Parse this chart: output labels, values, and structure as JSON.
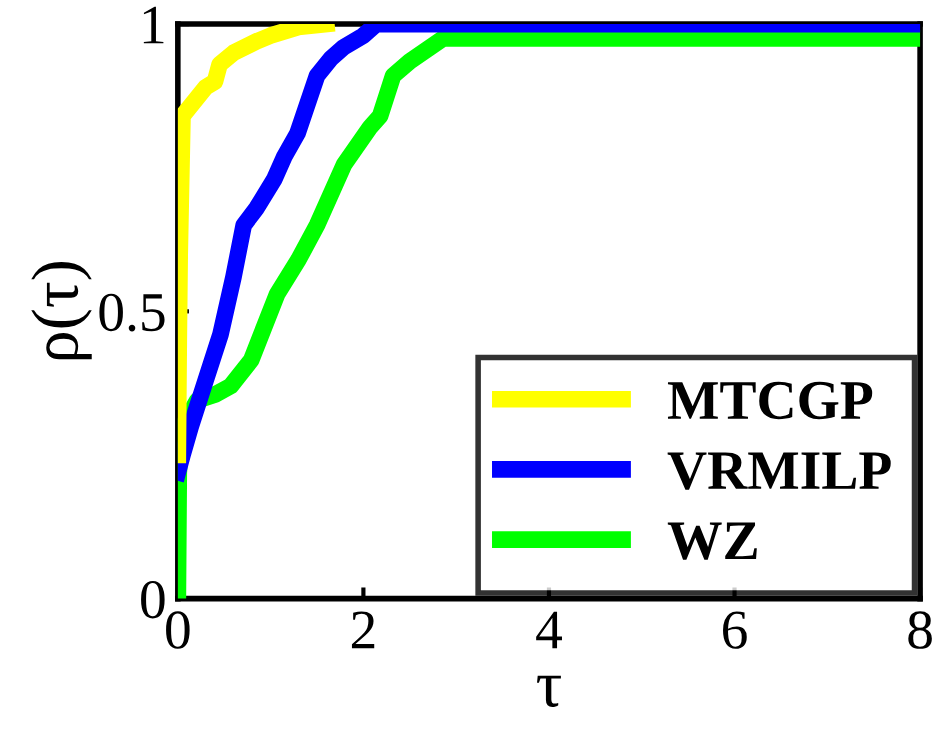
{
  "chart_data": {
    "type": "line",
    "xlabel": "τ",
    "ylabel": "ρ(τ)",
    "xlim": [
      0,
      8
    ],
    "ylim": [
      0,
      1
    ],
    "xticks": [
      0,
      2,
      4,
      6,
      8
    ],
    "yticks": [
      0,
      0.5,
      1
    ],
    "grid": false,
    "legend": "bottom right",
    "line_style": "solid",
    "series": [
      {
        "name": "MTCGP",
        "color": "#ffff00",
        "x": [
          0,
          0.01,
          0.02,
          0.05,
          0.15,
          0.3,
          0.4,
          0.45,
          0.6,
          0.85,
          1.0,
          1.3,
          1.6
        ],
        "values": [
          0.25,
          0.45,
          0.6,
          0.84,
          0.86,
          0.89,
          0.9,
          0.93,
          0.95,
          0.97,
          0.98,
          0.995,
          1.0
        ]
      },
      {
        "name": "VRMILP",
        "color": "#0000ff",
        "x": [
          0,
          0.05,
          0.14,
          0.3,
          0.46,
          0.6,
          0.71,
          0.85,
          1.04,
          1.15,
          1.29,
          1.5,
          1.65,
          1.79,
          2.0,
          2.14,
          8
        ],
        "values": [
          0.22,
          0.25,
          0.3,
          0.38,
          0.46,
          0.56,
          0.65,
          0.68,
          0.73,
          0.77,
          0.81,
          0.91,
          0.94,
          0.96,
          0.98,
          1.0,
          1.0
        ]
      },
      {
        "name": "WZ",
        "color": "#00ff00",
        "x": [
          0,
          0.01,
          0.05,
          0.21,
          0.4,
          0.57,
          0.79,
          1.07,
          1.3,
          1.5,
          1.79,
          2.07,
          2.18,
          2.32,
          2.5,
          2.86,
          8
        ],
        "values": [
          0,
          0.22,
          0.3,
          0.345,
          0.355,
          0.37,
          0.415,
          0.53,
          0.59,
          0.65,
          0.755,
          0.82,
          0.84,
          0.91,
          0.935,
          0.975,
          0.975
        ]
      }
    ]
  }
}
